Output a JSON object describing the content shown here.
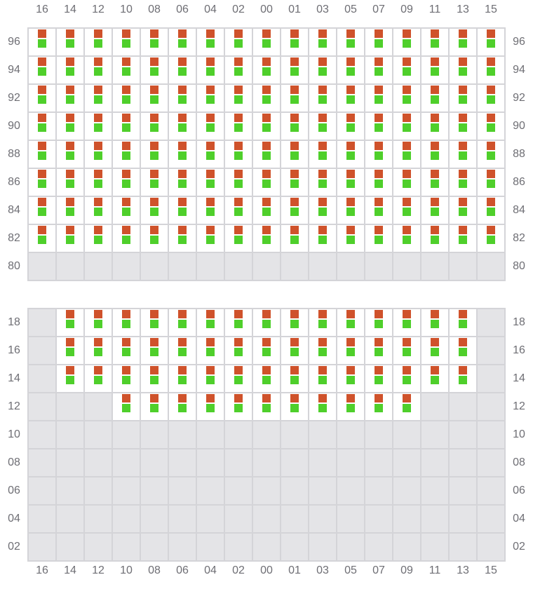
{
  "columns": [
    "16",
    "14",
    "12",
    "10",
    "08",
    "06",
    "04",
    "02",
    "00",
    "01",
    "03",
    "05",
    "07",
    "09",
    "11",
    "13",
    "15"
  ],
  "colors": {
    "top_marker": "#cf522b",
    "bottom_marker": "#4fcf2b",
    "empty_cell": "#e4e4e7",
    "occupied_cell": "#ffffff",
    "grid_line": "#d4d4d8"
  },
  "top_section": {
    "rows": [
      {
        "label": "96",
        "filled_from": "16",
        "filled_to": "15"
      },
      {
        "label": "94",
        "filled_from": "16",
        "filled_to": "15"
      },
      {
        "label": "92",
        "filled_from": "16",
        "filled_to": "15"
      },
      {
        "label": "90",
        "filled_from": "16",
        "filled_to": "15"
      },
      {
        "label": "88",
        "filled_from": "16",
        "filled_to": "15"
      },
      {
        "label": "86",
        "filled_from": "16",
        "filled_to": "15"
      },
      {
        "label": "84",
        "filled_from": "16",
        "filled_to": "15"
      },
      {
        "label": "82",
        "filled_from": "16",
        "filled_to": "15"
      },
      {
        "label": "80",
        "filled_from": null,
        "filled_to": null
      }
    ]
  },
  "bottom_section": {
    "rows": [
      {
        "label": "18",
        "filled_from": "14",
        "filled_to": "13"
      },
      {
        "label": "16",
        "filled_from": "14",
        "filled_to": "13"
      },
      {
        "label": "14",
        "filled_from": "14",
        "filled_to": "13"
      },
      {
        "label": "12",
        "filled_from": "10",
        "filled_to": "09"
      },
      {
        "label": "10",
        "filled_from": null,
        "filled_to": null
      },
      {
        "label": "08",
        "filled_from": null,
        "filled_to": null
      },
      {
        "label": "06",
        "filled_from": null,
        "filled_to": null
      },
      {
        "label": "04",
        "filled_from": null,
        "filled_to": null
      },
      {
        "label": "02",
        "filled_from": null,
        "filled_to": null
      }
    ]
  }
}
